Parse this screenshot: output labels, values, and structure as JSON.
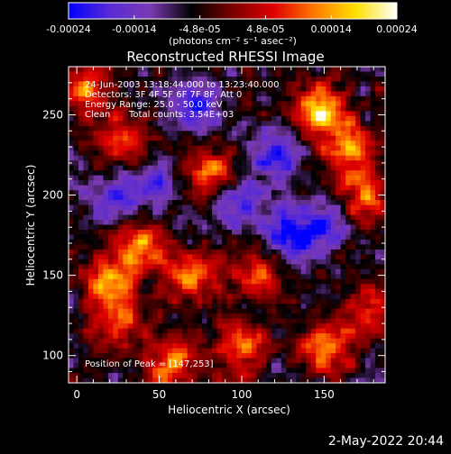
{
  "colorbar": {
    "tick_labels": [
      "-0.00024",
      "-0.00014",
      "-4.8e-05",
      "4.8e-05",
      "0.00014",
      "0.00024"
    ],
    "range": [
      -0.00024,
      0.00024
    ],
    "units": "(photons cm⁻² s⁻¹ asec⁻²)",
    "colormap": [
      "#0000ff",
      "#5a2bd6",
      "#7a3ab0",
      "#000000",
      "#7a0000",
      "#e00000",
      "#ff7a00",
      "#ffe000",
      "#ffffff"
    ]
  },
  "chart_data": {
    "type": "heatmap",
    "title": "Reconstructed RHESSI Image",
    "xlabel": "Heliocentric X (arcsec)",
    "ylabel": "Heliocentric Y (arcsec)",
    "xlim": [
      -5,
      187
    ],
    "ylim": [
      83,
      280
    ],
    "xticks": [
      "0",
      "50",
      "100",
      "150"
    ],
    "yticks": [
      "100",
      "150",
      "200",
      "250"
    ],
    "xtick_values": [
      0,
      50,
      100,
      150
    ],
    "ytick_values": [
      100,
      150,
      200,
      250
    ],
    "annotations": [
      "24-Jun-2003 13:18:44.000 to 13:23:40.000",
      "Detectors: 3F 4F 5F 6F 7F 8F, Att 0",
      "Energy Range: 25.0 - 50.0 keV",
      "Clean",
      "Total counts: 3.54E+03"
    ],
    "peak_label": "Position of Peak = [147,253]",
    "peak": [
      147,
      253
    ],
    "bright_regions": [
      {
        "x": 147,
        "y": 253,
        "level": 1.0
      },
      {
        "x": 165,
        "y": 230,
        "level": 0.8
      },
      {
        "x": 175,
        "y": 200,
        "level": 0.75
      },
      {
        "x": 150,
        "y": 105,
        "level": 0.85
      },
      {
        "x": 80,
        "y": 215,
        "level": 0.7
      },
      {
        "x": 40,
        "y": 170,
        "level": 0.75
      },
      {
        "x": 20,
        "y": 145,
        "level": 0.8
      },
      {
        "x": 70,
        "y": 150,
        "level": 0.7
      },
      {
        "x": 110,
        "y": 150,
        "level": 0.6
      },
      {
        "x": 100,
        "y": 105,
        "level": 0.7
      },
      {
        "x": 60,
        "y": 95,
        "level": 0.75
      },
      {
        "x": 5,
        "y": 265,
        "level": 0.7
      },
      {
        "x": 30,
        "y": 235,
        "level": 0.65
      },
      {
        "x": 175,
        "y": 130,
        "level": 0.5
      },
      {
        "x": 25,
        "y": 120,
        "level": 0.6
      }
    ],
    "dark_regions": [
      {
        "x": 70,
        "y": 255,
        "level": -0.7
      },
      {
        "x": 120,
        "y": 225,
        "level": -0.6
      },
      {
        "x": 130,
        "y": 175,
        "level": -0.7
      },
      {
        "x": 100,
        "y": 195,
        "level": -0.5
      },
      {
        "x": 45,
        "y": 205,
        "level": -0.55
      },
      {
        "x": 150,
        "y": 180,
        "level": -0.6
      },
      {
        "x": 20,
        "y": 195,
        "level": -0.45
      }
    ]
  },
  "footer": {
    "timestamp": "2-May-2022 20:44"
  }
}
